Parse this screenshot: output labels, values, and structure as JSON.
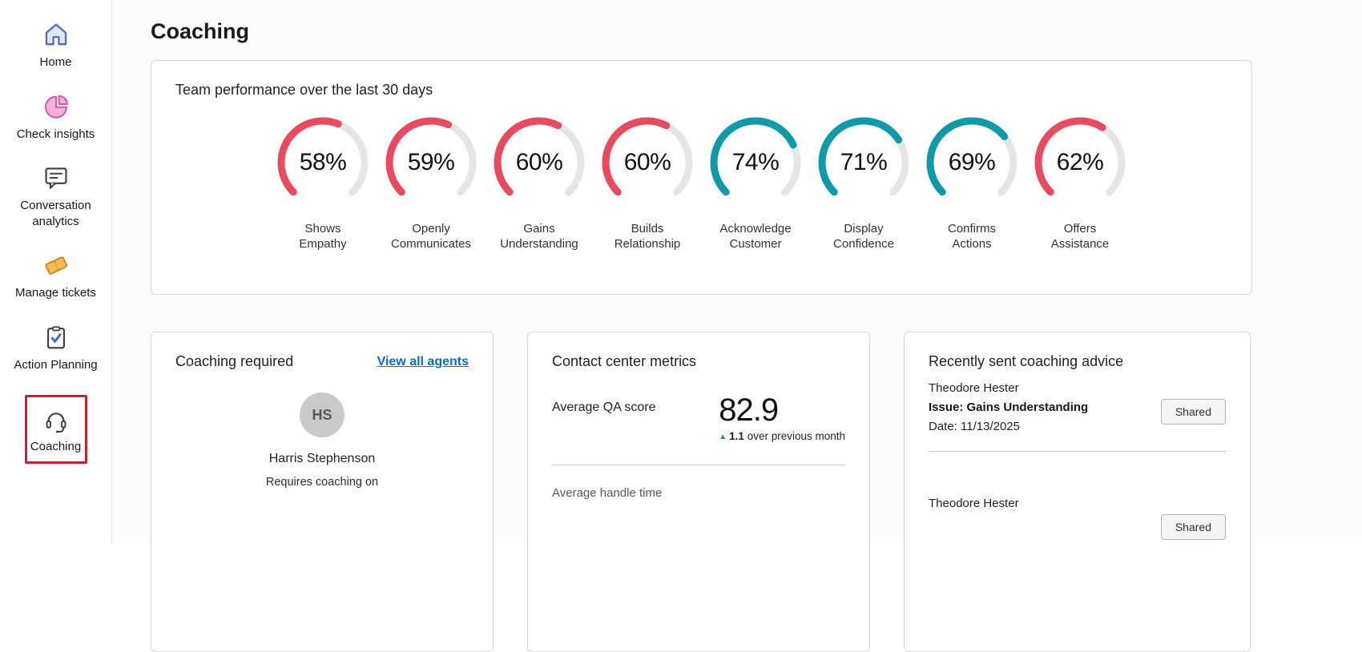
{
  "colors": {
    "selection_red": "#cf1e2a",
    "link_blue": "#0b6bcb",
    "gauge_red": "#ea4a5e",
    "gauge_teal": "#0e9aa9",
    "gauge_track": "#e4e5e7"
  },
  "sidebar": {
    "items": [
      {
        "label": "Home",
        "icon": "home-icon"
      },
      {
        "label": "Check insights",
        "icon": "pie-chart-icon"
      },
      {
        "label": "Conversation analytics",
        "icon": "chat-icon"
      },
      {
        "label": "Manage tickets",
        "icon": "ticket-icon"
      },
      {
        "label": "Action Planning",
        "icon": "clipboard-check-icon"
      },
      {
        "label": "Coaching",
        "icon": "headset-icon",
        "selected": true
      }
    ]
  },
  "page": {
    "title": "Coaching"
  },
  "team_performance": {
    "title": "Team performance over the last 30 days",
    "gauges": [
      {
        "value": 58,
        "pct": "58%",
        "label": "Shows Empathy",
        "color": "#ea4a5e"
      },
      {
        "value": 59,
        "pct": "59%",
        "label": "Openly Communicates",
        "color": "#ea4a5e"
      },
      {
        "value": 60,
        "pct": "60%",
        "label": "Gains Understanding",
        "color": "#ea4a5e"
      },
      {
        "value": 60,
        "pct": "60%",
        "label": "Builds Relationship",
        "color": "#ea4a5e"
      },
      {
        "value": 74,
        "pct": "74%",
        "label": "Acknowledge Customer",
        "color": "#0e9aa9"
      },
      {
        "value": 71,
        "pct": "71%",
        "label": "Display Confidence",
        "color": "#0e9aa9"
      },
      {
        "value": 69,
        "pct": "69%",
        "label": "Confirms Actions",
        "color": "#0e9aa9"
      },
      {
        "value": 62,
        "pct": "62%",
        "label": "Offers Assistance",
        "color": "#ea4a5e"
      }
    ]
  },
  "coaching_required": {
    "title": "Coaching required",
    "link": "View all agents",
    "agent": {
      "initials": "HS",
      "name": "Harris Stephenson",
      "note": "Requires coaching on"
    }
  },
  "contact_center": {
    "title": "Contact center metrics",
    "metric_label": "Average QA score",
    "metric_value": "82.9",
    "delta_value": "1.1",
    "delta_text": "over previous month",
    "next_metric_label": "Average handle time"
  },
  "recent_advice": {
    "title": "Recently sent coaching advice",
    "entries": [
      {
        "name": "Theodore Hester",
        "issue": "Issue: Gains Understanding",
        "date": "Date: 11/13/2025",
        "status": "Shared"
      },
      {
        "name": "Theodore Hester",
        "issue": "",
        "date": "",
        "status": "Shared"
      }
    ]
  }
}
